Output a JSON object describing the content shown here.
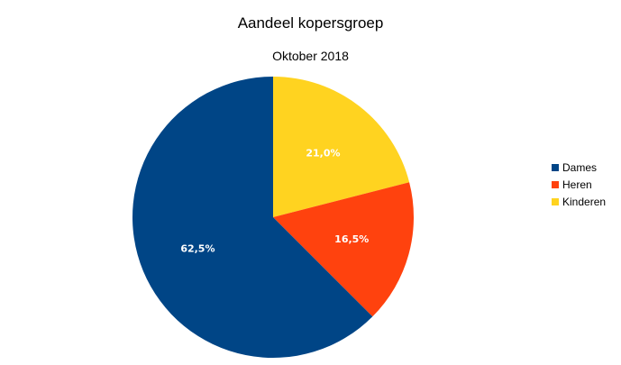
{
  "chart_data": {
    "type": "pie",
    "title": "Aandeel kopersgroep",
    "subtitle": "Oktober 2018",
    "categories": [
      "Kinderen",
      "Heren",
      "Dames"
    ],
    "values": [
      21.0,
      16.5,
      62.5
    ],
    "labels": [
      "21,0%",
      "16,5%",
      "62,5%"
    ],
    "colors": [
      "#ffd320",
      "#ff420e",
      "#004586"
    ],
    "legend": {
      "position": "right",
      "entries": [
        {
          "label": "Dames",
          "color": "#004586"
        },
        {
          "label": "Heren",
          "color": "#ff420e"
        },
        {
          "label": "Kinderen",
          "color": "#ffd320"
        }
      ]
    },
    "start_angle": "12 o'clock",
    "direction": "clockwise"
  }
}
